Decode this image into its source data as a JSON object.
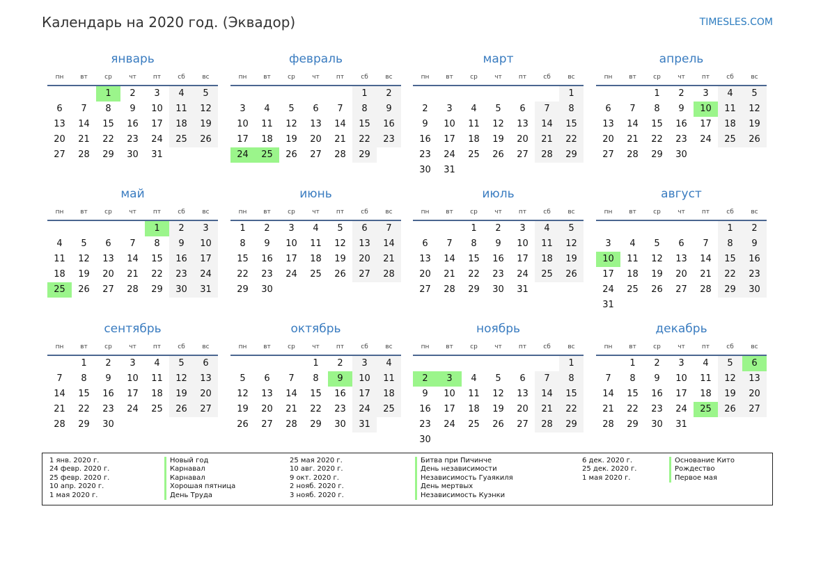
{
  "header": {
    "title": "Календарь на 2020 год. (Эквадор)",
    "site": "TIMESLES.COM"
  },
  "year": 2020,
  "colors": {
    "holiday": "#9bf58b",
    "weekend": "#f3f3f3",
    "accent": "#3a7cc0"
  },
  "weekdays": [
    "пн",
    "вт",
    "ср",
    "чт",
    "пт",
    "сб",
    "вс"
  ],
  "months": [
    {
      "name": "январь",
      "holidays": [
        1
      ]
    },
    {
      "name": "февраль",
      "holidays": [
        24,
        25
      ]
    },
    {
      "name": "март",
      "holidays": []
    },
    {
      "name": "апрель",
      "holidays": [
        10
      ]
    },
    {
      "name": "май",
      "holidays": [
        1,
        25
      ]
    },
    {
      "name": "июнь",
      "holidays": []
    },
    {
      "name": "июль",
      "holidays": []
    },
    {
      "name": "август",
      "holidays": [
        10
      ]
    },
    {
      "name": "сентябрь",
      "holidays": []
    },
    {
      "name": "октябрь",
      "holidays": [
        9
      ]
    },
    {
      "name": "ноябрь",
      "holidays": [
        2,
        3
      ]
    },
    {
      "name": "декабрь",
      "holidays": [
        6,
        25
      ]
    }
  ],
  "legend": [
    [
      {
        "date": "1 янв. 2020 г.",
        "name": "Новый год"
      },
      {
        "date": "24 февр. 2020 г.",
        "name": "Карнавал"
      },
      {
        "date": "25 февр. 2020 г.",
        "name": "Карнавал"
      },
      {
        "date": "10 апр. 2020 г.",
        "name": "Хорошая пятница"
      },
      {
        "date": "1 мая 2020 г.",
        "name": "День Труда"
      }
    ],
    [
      {
        "date": "25 мая 2020 г.",
        "name": "Битва при Пичинче"
      },
      {
        "date": "10 авг. 2020 г.",
        "name": "День независимости"
      },
      {
        "date": "9 окт. 2020 г.",
        "name": "Независимость Гуаякиля"
      },
      {
        "date": "2 нояб. 2020 г.",
        "name": "День мертвых"
      },
      {
        "date": "3 нояб. 2020 г.",
        "name": "Независимость Куэнки"
      }
    ],
    [
      {
        "date": "6 дек. 2020 г.",
        "name": "Основание Кито"
      },
      {
        "date": "25 дек. 2020 г.",
        "name": "Рождество"
      },
      {
        "date": "1 мая 2020 г.",
        "name": "Первое мая"
      }
    ]
  ]
}
